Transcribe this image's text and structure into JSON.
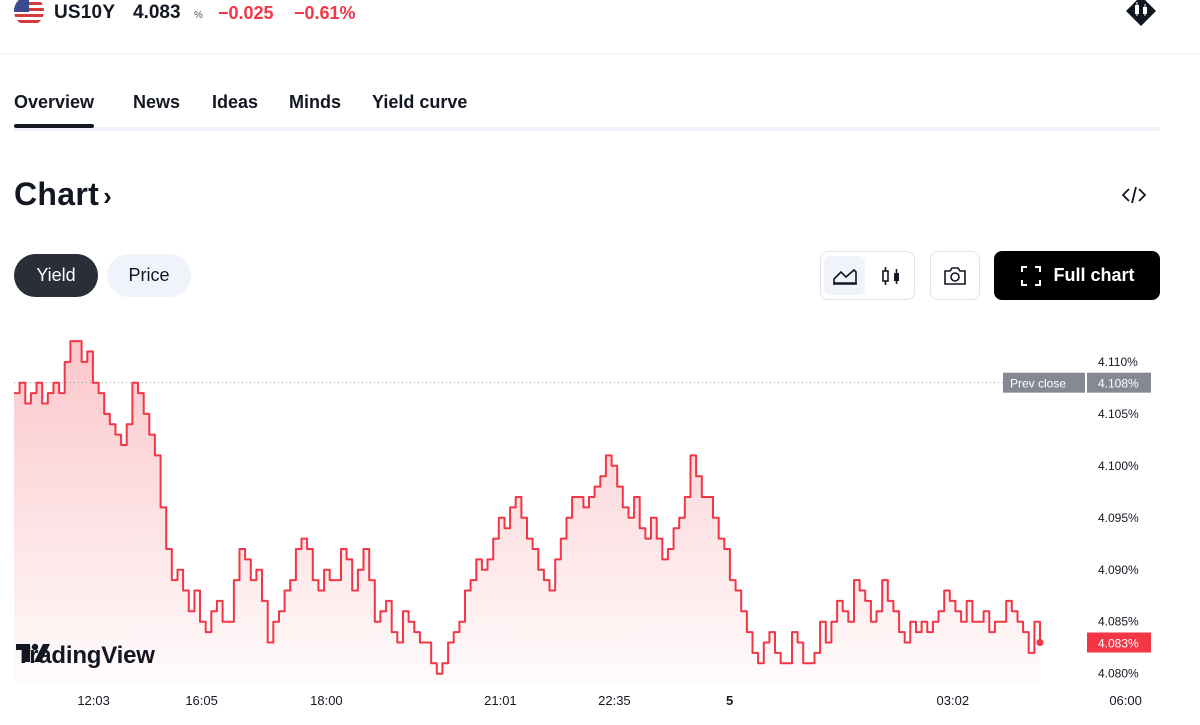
{
  "header": {
    "symbol": "US10Y",
    "value": "4.083",
    "unit": "%",
    "change": "−0.025",
    "change_percent": "−0.61%",
    "flag_icon": "us-flag-icon",
    "brand_icon": "candles-brand-icon"
  },
  "tabs": [
    {
      "label": "Overview",
      "active": true
    },
    {
      "label": "News"
    },
    {
      "label": "Ideas"
    },
    {
      "label": "Minds"
    },
    {
      "label": "Yield curve"
    }
  ],
  "section": {
    "title": "Chart",
    "chevron": "›",
    "embed_icon": "code-embed-icon"
  },
  "controls": {
    "yield_label": "Yield",
    "price_label": "Price",
    "area_icon": "area-chart-icon",
    "candles_icon": "candles-chart-icon",
    "camera_icon": "camera-icon",
    "full_chart_label": "Full chart"
  },
  "colors": {
    "line": "#f23645",
    "accent_dark": "#000000"
  },
  "chart_data": {
    "type": "area",
    "series": [
      {
        "values": [
          4.107,
          4.108,
          4.106,
          4.107,
          4.108,
          4.106,
          4.107,
          4.108,
          4.107,
          4.11,
          4.112,
          4.112,
          4.11,
          4.111,
          4.108,
          4.107,
          4.105,
          4.104,
          4.103,
          4.102,
          4.104,
          4.108,
          4.107,
          4.105,
          4.103,
          4.101,
          4.096,
          4.092,
          4.089,
          4.09,
          4.088,
          4.086,
          4.088,
          4.085,
          4.084,
          4.086,
          4.087,
          4.085,
          4.085,
          4.089,
          4.092,
          4.091,
          4.089,
          4.09,
          4.087,
          4.083,
          4.085,
          4.086,
          4.088,
          4.089,
          4.092,
          4.093,
          4.092,
          4.089,
          4.088,
          4.09,
          4.089,
          4.089,
          4.092,
          4.091,
          4.088,
          4.09,
          4.092,
          4.089,
          4.085,
          4.086,
          4.087,
          4.084,
          4.083,
          4.086,
          4.085,
          4.084,
          4.083,
          4.083,
          4.081,
          4.08,
          4.081,
          4.083,
          4.084,
          4.085,
          4.088,
          4.089,
          4.091,
          4.09,
          4.091,
          4.093,
          4.095,
          4.094,
          4.096,
          4.097,
          4.095,
          4.093,
          4.092,
          4.09,
          4.089,
          4.088,
          4.091,
          4.093,
          4.095,
          4.097,
          4.097,
          4.096,
          4.097,
          4.098,
          4.099,
          4.101,
          4.1,
          4.098,
          4.096,
          4.095,
          4.097,
          4.094,
          4.093,
          4.095,
          4.093,
          4.091,
          4.092,
          4.094,
          4.095,
          4.097,
          4.101,
          4.099,
          4.097,
          4.097,
          4.095,
          4.093,
          4.092,
          4.089,
          4.088,
          4.086,
          4.084,
          4.082,
          4.081,
          4.083,
          4.084,
          4.082,
          4.081,
          4.081,
          4.084,
          4.083,
          4.081,
          4.081,
          4.082,
          4.085,
          4.083,
          4.085,
          4.087,
          4.086,
          4.085,
          4.089,
          4.088,
          4.087,
          4.085,
          4.086,
          4.089,
          4.087,
          4.086,
          4.084,
          4.083,
          4.085,
          4.084,
          4.085,
          4.084,
          4.085,
          4.086,
          4.088,
          4.087,
          4.086,
          4.085,
          4.087,
          4.085,
          4.085,
          4.086,
          4.084,
          4.085,
          4.085,
          4.087,
          4.086,
          4.085,
          4.084,
          4.082,
          4.085,
          4.083
        ],
        "color": "#f23645"
      }
    ],
    "ylim": [
      4.0792,
      4.1148
    ],
    "y_ticks": [
      "4.110%",
      "4.105%",
      "4.100%",
      "4.095%",
      "4.090%",
      "4.085%",
      "4.080%"
    ],
    "y_tick_values": [
      4.11,
      4.105,
      4.1,
      4.095,
      4.09,
      4.085,
      4.08
    ],
    "x_ticks": [
      "12:03",
      "16:05",
      "18:00",
      "21:01",
      "22:35",
      "5",
      "03:02",
      "06:00"
    ],
    "x_tick_positions": [
      0.078,
      0.168,
      0.272,
      0.417,
      0.512,
      0.608,
      0.794,
      0.938
    ],
    "prev_close": {
      "label": "Prev close",
      "value": 4.108,
      "value_label": "4.108%"
    },
    "last": {
      "value": 4.083,
      "value_label": "4.083%"
    },
    "grid": false
  },
  "watermark": {
    "text": "TradingView"
  }
}
